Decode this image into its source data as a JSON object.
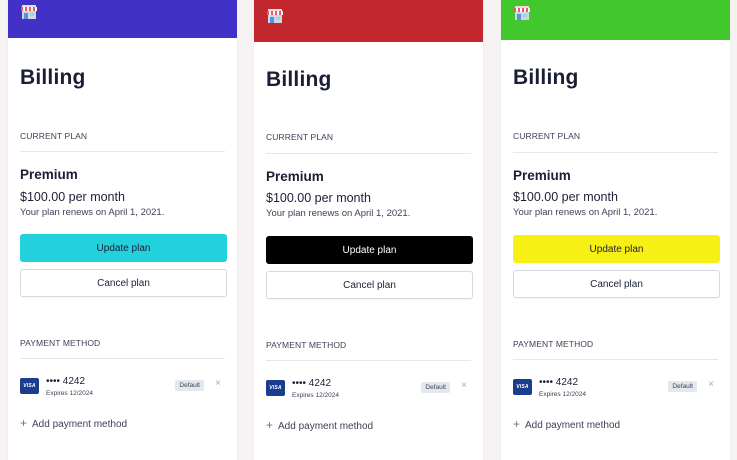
{
  "cards": [
    {
      "header_color": "#4231c7",
      "primary_bg": "#23d1dc",
      "primary_fg": "#1a1f36",
      "title": "Billing",
      "current_plan_label": "CURRENT PLAN",
      "plan_name": "Premium",
      "plan_price": "$100.00 per month",
      "plan_renew": "Your plan renews on April 1, 2021.",
      "update_label": "Update plan",
      "cancel_label": "Cancel plan",
      "payment_method_label": "PAYMENT METHOD",
      "card_brand": "VISA",
      "card_number": "•••• 4242",
      "card_expiry": "Expires 12/2024",
      "default_badge": "Default",
      "remove_icon": "×",
      "add_payment": "Add payment method"
    },
    {
      "header_color": "#c1272d",
      "primary_bg": "#000000",
      "primary_fg": "#ffffff",
      "title": "Billing",
      "current_plan_label": "CURRENT PLAN",
      "plan_name": "Premium",
      "plan_price": "$100.00 per month",
      "plan_renew": "Your plan renews on April 1, 2021.",
      "update_label": "Update plan",
      "cancel_label": "Cancel plan",
      "payment_method_label": "PAYMENT METHOD",
      "card_brand": "VISA",
      "card_number": "•••• 4242",
      "card_expiry": "Expires 12/2024",
      "default_badge": "Default",
      "remove_icon": "×",
      "add_payment": "Add payment method"
    },
    {
      "header_color": "#42c82d",
      "primary_bg": "#f7f014",
      "primary_fg": "#1a1f36",
      "title": "Billing",
      "current_plan_label": "CURRENT PLAN",
      "plan_name": "Premium",
      "plan_price": "$100.00 per month",
      "plan_renew": "Your plan renews on April 1, 2021.",
      "update_label": "Update plan",
      "cancel_label": "Cancel plan",
      "payment_method_label": "PAYMENT METHOD",
      "card_brand": "VISA",
      "card_number": "•••• 4242",
      "card_expiry": "Expires 12/2024",
      "default_badge": "Default",
      "remove_icon": "×",
      "add_payment": "Add payment method"
    }
  ],
  "icons": {
    "header": "shop-icon",
    "card": "visa-card-icon",
    "remove": "close-icon",
    "add": "plus-icon"
  }
}
